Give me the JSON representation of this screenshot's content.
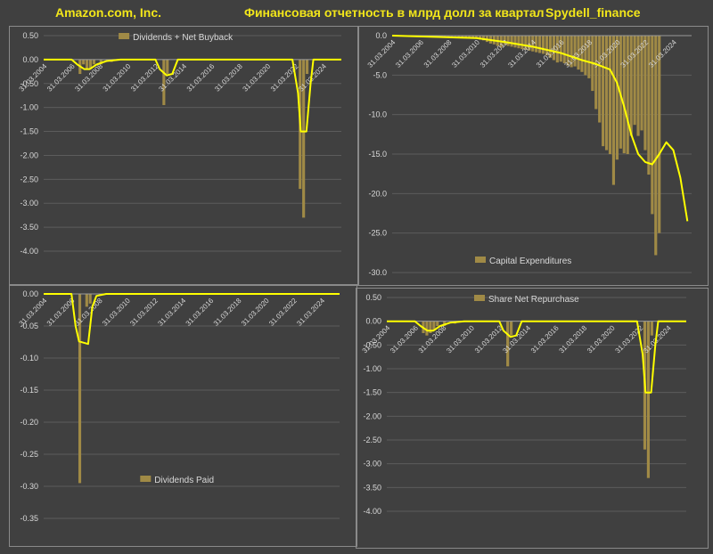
{
  "header": {
    "company": "Amazon.com, Inc.",
    "title": "Финансовая отчетность в млрд долл за квартал",
    "source": "Spydell_finance"
  },
  "colors": {
    "bar": "#a08a46",
    "line": "#ffff00",
    "background": "#404040",
    "grid": "#5c5c5c"
  },
  "chart_data": [
    {
      "type": "bar",
      "legend": "Dividends + Net Buyback",
      "legend_position": "top",
      "ylim": [
        -4.0,
        0.5
      ],
      "yticks": [
        "0.50",
        "0.00",
        "-0.50",
        "-1.00",
        "-1.50",
        "-2.00",
        "-2.50",
        "-3.00",
        "-3.50",
        "-4.00"
      ],
      "xticks": [
        "31.03.2004",
        "31.03.2006",
        "31.03.2008",
        "31.03.2010",
        "31.03.2012",
        "31.03.2014",
        "31.03.2016",
        "31.03.2018",
        "31.03.2020",
        "31.03.2022",
        "31.03.2024"
      ],
      "bars": [
        {
          "year": 2006.6,
          "value": -0.3
        },
        {
          "year": 2006.85,
          "value": -0.1
        },
        {
          "year": 2007.1,
          "value": -0.2
        },
        {
          "year": 2007.35,
          "value": -0.2
        },
        {
          "year": 2007.6,
          "value": -0.1
        },
        {
          "year": 2008.1,
          "value": -0.1
        },
        {
          "year": 2008.85,
          "value": -0.05
        },
        {
          "year": 2012.6,
          "value": -0.95
        },
        {
          "year": 2012.85,
          "value": -0.3
        },
        {
          "year": 2022.35,
          "value": -2.7
        },
        {
          "year": 2022.6,
          "value": -3.3
        },
        {
          "year": 2022.85,
          "value": -0.3
        }
      ],
      "trend": [
        {
          "year": 2004.0,
          "value": 0.0
        },
        {
          "year": 2006.0,
          "value": 0.0
        },
        {
          "year": 2006.4,
          "value": -0.1
        },
        {
          "year": 2006.9,
          "value": -0.2
        },
        {
          "year": 2007.3,
          "value": -0.2
        },
        {
          "year": 2007.8,
          "value": -0.1
        },
        {
          "year": 2008.5,
          "value": -0.03
        },
        {
          "year": 2009.5,
          "value": 0.0
        },
        {
          "year": 2012.0,
          "value": 0.0
        },
        {
          "year": 2012.3,
          "value": -0.2
        },
        {
          "year": 2012.8,
          "value": -0.33
        },
        {
          "year": 2013.2,
          "value": -0.3
        },
        {
          "year": 2013.6,
          "value": 0.0
        },
        {
          "year": 2021.8,
          "value": 0.0
        },
        {
          "year": 2022.2,
          "value": -0.7
        },
        {
          "year": 2022.4,
          "value": -1.5
        },
        {
          "year": 2022.8,
          "value": -1.5
        },
        {
          "year": 2023.1,
          "value": -0.5
        },
        {
          "year": 2023.3,
          "value": 0.0
        },
        {
          "year": 2025.3,
          "value": 0.0
        }
      ]
    },
    {
      "type": "bar",
      "legend": "Capital Expenditures",
      "legend_position": "bottom",
      "ylim": [
        -30.0,
        0.0
      ],
      "yticks": [
        "0.0",
        "-5.0",
        "-10.0",
        "-15.0",
        "-20.0",
        "-25.0",
        "-30.0"
      ],
      "xticks": [
        "31.03.2004",
        "31.03.2006",
        "31.03.2008",
        "31.03.2010",
        "31.03.2012",
        "31.03.2014",
        "31.03.2016",
        "31.03.2018",
        "31.03.2020",
        "31.03.2022",
        "31.03.2024"
      ],
      "bars_from_year": 2004.0,
      "bars_step": 0.25,
      "bar_values": [
        0,
        0,
        0,
        0,
        -0.05,
        -0.05,
        -0.05,
        -0.05,
        -0.05,
        -0.05,
        -0.05,
        -0.05,
        -0.1,
        -0.1,
        -0.1,
        -0.1,
        -0.1,
        -0.1,
        -0.1,
        -0.15,
        -0.2,
        -0.2,
        -0.25,
        -0.3,
        -0.4,
        -0.5,
        -0.6,
        -0.8,
        -1.0,
        -1.1,
        -1.3,
        -1.5,
        -1.2,
        -1.3,
        -1.4,
        -1.5,
        -1.6,
        -1.7,
        -1.8,
        -1.9,
        -2.0,
        -2.1,
        -2.2,
        -2.3,
        -2.5,
        -2.8,
        -3.1,
        -3.4,
        -3.3,
        -3.5,
        -3.8,
        -4.0,
        -3.9,
        -4.3,
        -4.6,
        -5.0,
        -5.4,
        -7.0,
        -9.3,
        -11.0,
        -14.0,
        -14.5,
        -15.0,
        -18.9,
        -15.7,
        -14.3,
        -14.9,
        -15.0,
        -12.7,
        -11.3,
        -12.7,
        -12.0,
        -14.5,
        -17.6,
        -22.6,
        -27.8,
        -25.0
      ],
      "trend": [
        {
          "year": 2004.0,
          "value": 0.0
        },
        {
          "year": 2010.0,
          "value": -0.3
        },
        {
          "year": 2012.0,
          "value": -0.8
        },
        {
          "year": 2014.0,
          "value": -1.4
        },
        {
          "year": 2016.0,
          "value": -2.2
        },
        {
          "year": 2017.5,
          "value": -3.1
        },
        {
          "year": 2018.5,
          "value": -3.6
        },
        {
          "year": 2019.5,
          "value": -4.3
        },
        {
          "year": 2020.0,
          "value": -6.0
        },
        {
          "year": 2020.5,
          "value": -9.0
        },
        {
          "year": 2021.0,
          "value": -12.5
        },
        {
          "year": 2021.5,
          "value": -15.0
        },
        {
          "year": 2022.0,
          "value": -16.0
        },
        {
          "year": 2022.5,
          "value": -16.3
        },
        {
          "year": 2023.0,
          "value": -15.0
        },
        {
          "year": 2023.5,
          "value": -13.5
        },
        {
          "year": 2024.0,
          "value": -14.5
        },
        {
          "year": 2024.5,
          "value": -18.0
        },
        {
          "year": 2025.0,
          "value": -23.5
        }
      ]
    },
    {
      "type": "bar",
      "legend": "Dividends Paid",
      "legend_position": "bottom",
      "ylim": [
        -0.35,
        0.0
      ],
      "yticks": [
        "0.00",
        "-0.05",
        "-0.10",
        "-0.15",
        "-0.20",
        "-0.25",
        "-0.30",
        "-0.35"
      ],
      "xticks": [
        "31.03.2004",
        "31.03.2006",
        "31.03.2008",
        "31.03.2010",
        "31.03.2012",
        "31.03.2014",
        "31.03.2016",
        "31.03.2018",
        "31.03.2020",
        "31.03.2022",
        "31.03.2024"
      ],
      "bars": [
        {
          "year": 2006.6,
          "value": -0.295
        },
        {
          "year": 2007.1,
          "value": -0.02
        },
        {
          "year": 2007.35,
          "value": -0.015
        }
      ],
      "trend": [
        {
          "year": 2004.0,
          "value": 0.0
        },
        {
          "year": 2006.0,
          "value": 0.0
        },
        {
          "year": 2006.3,
          "value": -0.05
        },
        {
          "year": 2006.55,
          "value": -0.074
        },
        {
          "year": 2007.2,
          "value": -0.078
        },
        {
          "year": 2007.5,
          "value": -0.02
        },
        {
          "year": 2007.8,
          "value": -0.003
        },
        {
          "year": 2008.5,
          "value": 0.0
        },
        {
          "year": 2025.3,
          "value": 0.0
        }
      ]
    },
    {
      "type": "bar",
      "legend": "Share Net Repurchase",
      "legend_position": "top",
      "ylim": [
        -4.0,
        0.5
      ],
      "yticks": [
        "0.50",
        "0.00",
        "-0.50",
        "-1.00",
        "-1.50",
        "-2.00",
        "-2.50",
        "-3.00",
        "-3.50",
        "-4.00"
      ],
      "xticks": [
        "31.03.2004",
        "31.03.2006",
        "31.03.2008",
        "31.03.2010",
        "31.03.2012",
        "31.03.2014",
        "31.03.2016",
        "31.03.2018",
        "31.03.2020",
        "31.03.2022",
        "31.03.2024"
      ],
      "bars": [
        {
          "year": 2006.6,
          "value": -0.25
        },
        {
          "year": 2006.85,
          "value": -0.3
        },
        {
          "year": 2007.1,
          "value": -0.25
        },
        {
          "year": 2007.35,
          "value": -0.2
        },
        {
          "year": 2007.6,
          "value": -0.1
        },
        {
          "year": 2008.1,
          "value": -0.1
        },
        {
          "year": 2008.85,
          "value": -0.05
        },
        {
          "year": 2012.6,
          "value": -0.95
        },
        {
          "year": 2012.85,
          "value": -0.3
        },
        {
          "year": 2022.35,
          "value": -2.7
        },
        {
          "year": 2022.6,
          "value": -3.3
        },
        {
          "year": 2022.85,
          "value": -0.3
        }
      ],
      "trend": [
        {
          "year": 2004.0,
          "value": 0.0
        },
        {
          "year": 2006.0,
          "value": 0.0
        },
        {
          "year": 2006.4,
          "value": -0.1
        },
        {
          "year": 2006.9,
          "value": -0.2
        },
        {
          "year": 2007.3,
          "value": -0.2
        },
        {
          "year": 2007.8,
          "value": -0.1
        },
        {
          "year": 2008.5,
          "value": -0.03
        },
        {
          "year": 2009.5,
          "value": 0.0
        },
        {
          "year": 2012.0,
          "value": 0.0
        },
        {
          "year": 2012.3,
          "value": -0.2
        },
        {
          "year": 2012.8,
          "value": -0.33
        },
        {
          "year": 2013.2,
          "value": -0.3
        },
        {
          "year": 2013.6,
          "value": 0.0
        },
        {
          "year": 2021.8,
          "value": 0.0
        },
        {
          "year": 2022.2,
          "value": -0.7
        },
        {
          "year": 2022.4,
          "value": -1.5
        },
        {
          "year": 2022.8,
          "value": -1.5
        },
        {
          "year": 2023.1,
          "value": -0.5
        },
        {
          "year": 2023.3,
          "value": 0.0
        },
        {
          "year": 2025.3,
          "value": 0.0
        }
      ]
    }
  ]
}
